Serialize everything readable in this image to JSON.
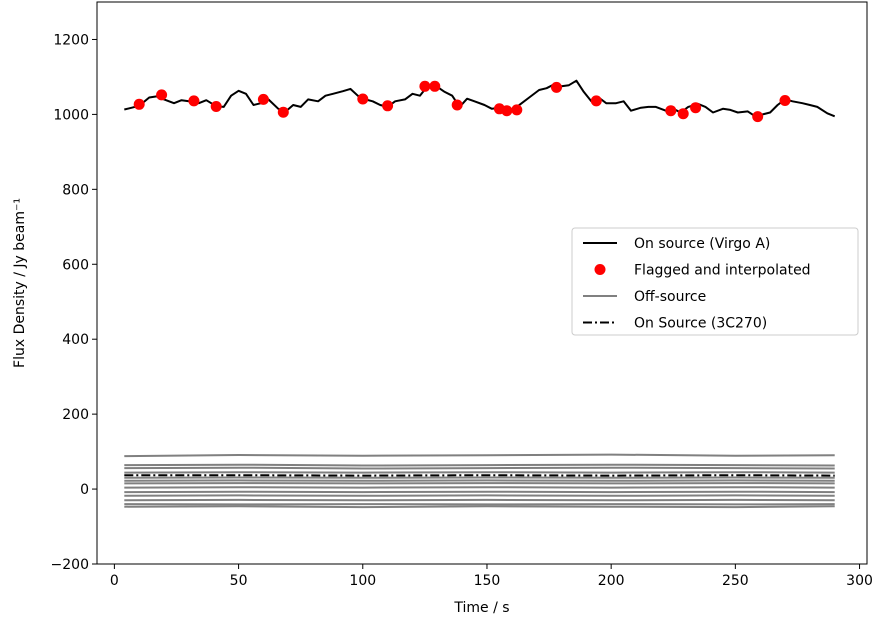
{
  "chart_data": {
    "type": "line",
    "xlabel": "Time / s",
    "ylabel": "Flux Density / Jy beam⁻¹",
    "xlim": [
      -7,
      303
    ],
    "ylim": [
      -200,
      1300
    ],
    "xticks": [
      0,
      50,
      100,
      150,
      200,
      250,
      300
    ],
    "yticks": [
      -200,
      0,
      200,
      400,
      600,
      800,
      1000,
      1200
    ],
    "xtick_labels": [
      "0",
      "50",
      "100",
      "150",
      "200",
      "250",
      "300"
    ],
    "ytick_labels": [
      "−200",
      "0",
      "200",
      "400",
      "600",
      "800",
      "1000",
      "1200"
    ],
    "grid": false,
    "legend_position": "center-right",
    "legend": [
      {
        "label": "On source (Virgo A)",
        "style": "solid",
        "color": "#000000"
      },
      {
        "label": "Flagged and interpolated",
        "style": "marker",
        "color": "#ff0000"
      },
      {
        "label": "Off-source",
        "style": "solid",
        "color": "#808080"
      },
      {
        "label": "On Source (3C270)",
        "style": "dashdot",
        "color": "#000000"
      }
    ],
    "series": [
      {
        "name": "On source (Virgo A)",
        "style": "solid",
        "color": "#000000",
        "x": [
          4,
          7,
          10,
          14,
          17,
          20,
          24,
          27,
          30,
          34,
          37,
          41,
          44,
          47,
          50,
          53,
          56,
          59,
          62,
          66,
          69,
          72,
          75,
          78,
          82,
          85,
          88,
          92,
          95,
          98,
          101,
          104,
          107,
          110,
          113,
          117,
          120,
          123,
          126,
          129,
          133,
          136,
          139,
          142,
          145,
          149,
          152,
          155,
          158,
          161,
          164,
          167,
          171,
          174,
          177,
          180,
          183,
          186,
          189,
          192,
          195,
          198,
          202,
          205,
          208,
          212,
          215,
          218,
          222,
          225,
          228,
          231,
          235,
          238,
          241,
          245,
          248,
          251,
          255,
          258,
          261,
          264,
          267,
          270,
          273,
          277,
          280,
          283,
          287,
          290
        ],
        "y": [
          1013,
          1018,
          1023,
          1045,
          1048,
          1040,
          1030,
          1038,
          1035,
          1030,
          1038,
          1022,
          1020,
          1050,
          1063,
          1055,
          1025,
          1030,
          1040,
          1015,
          1008,
          1025,
          1020,
          1040,
          1035,
          1050,
          1055,
          1062,
          1068,
          1050,
          1040,
          1035,
          1025,
          1020,
          1035,
          1040,
          1055,
          1050,
          1075,
          1078,
          1060,
          1050,
          1020,
          1042,
          1035,
          1025,
          1015,
          1018,
          1012,
          1015,
          1030,
          1045,
          1065,
          1070,
          1080,
          1075,
          1078,
          1090,
          1060,
          1035,
          1045,
          1030,
          1030,
          1035,
          1010,
          1018,
          1020,
          1020,
          1010,
          1015,
          1005,
          1020,
          1028,
          1020,
          1005,
          1015,
          1012,
          1005,
          1008,
          995,
          1000,
          1005,
          1025,
          1040,
          1035,
          1030,
          1025,
          1020,
          1003,
          995
        ]
      },
      {
        "name": "Flagged and interpolated",
        "style": "marker",
        "color": "#ff0000",
        "x": [
          10,
          19,
          32,
          41,
          60,
          68,
          100,
          110,
          125,
          129,
          138,
          155,
          158,
          162,
          178,
          194,
          224,
          229,
          234,
          259,
          270
        ],
        "y": [
          1027,
          1052,
          1036,
          1021,
          1040,
          1006,
          1041,
          1023,
          1075,
          1075,
          1025,
          1015,
          1010,
          1012,
          1072,
          1036,
          1010,
          1002,
          1018,
          994,
          1037
        ]
      },
      {
        "name": "Off-source",
        "style": "solid",
        "color": "#808080",
        "x": [
          4,
          50,
          100,
          150,
          200,
          250,
          290
        ],
        "y": [
          88,
          91,
          89,
          90,
          92,
          89,
          90
        ]
      },
      {
        "name": "Off-source",
        "style": "solid",
        "color": "#808080",
        "x": [
          4,
          50,
          100,
          150,
          200,
          250,
          290
        ],
        "y": [
          64,
          65,
          63,
          64,
          65,
          64,
          63
        ]
      },
      {
        "name": "Off-source",
        "style": "solid",
        "color": "#808080",
        "x": [
          4,
          50,
          100,
          150,
          200,
          250,
          290
        ],
        "y": [
          56,
          57,
          55,
          56,
          57,
          56,
          55
        ]
      },
      {
        "name": "Off-source",
        "style": "solid",
        "color": "#808080",
        "x": [
          4,
          50,
          100,
          150,
          200,
          250,
          290
        ],
        "y": [
          44,
          45,
          44,
          45,
          44,
          45,
          44
        ]
      },
      {
        "name": "Off-source",
        "style": "solid",
        "color": "#808080",
        "x": [
          4,
          50,
          100,
          150,
          200,
          250,
          290
        ],
        "y": [
          30,
          31,
          30,
          31,
          30,
          31,
          30
        ]
      },
      {
        "name": "Off-source",
        "style": "solid",
        "color": "#808080",
        "x": [
          4,
          50,
          100,
          150,
          200,
          250,
          290
        ],
        "y": [
          22,
          23,
          22,
          23,
          22,
          23,
          22
        ]
      },
      {
        "name": "Off-source",
        "style": "solid",
        "color": "#808080",
        "x": [
          4,
          50,
          100,
          150,
          200,
          250,
          290
        ],
        "y": [
          15,
          16,
          15,
          16,
          15,
          16,
          15
        ]
      },
      {
        "name": "Off-source",
        "style": "solid",
        "color": "#808080",
        "x": [
          4,
          50,
          100,
          150,
          200,
          250,
          290
        ],
        "y": [
          4,
          5,
          4,
          5,
          4,
          5,
          4
        ]
      },
      {
        "name": "Off-source",
        "style": "solid",
        "color": "#808080",
        "x": [
          4,
          50,
          100,
          150,
          200,
          250,
          290
        ],
        "y": [
          -8,
          -7,
          -8,
          -7,
          -8,
          -7,
          -8
        ]
      },
      {
        "name": "Off-source",
        "style": "solid",
        "color": "#808080",
        "x": [
          4,
          50,
          100,
          150,
          200,
          250,
          290
        ],
        "y": [
          -18,
          -17,
          -18,
          -17,
          -18,
          -17,
          -18
        ]
      },
      {
        "name": "Off-source",
        "style": "solid",
        "color": "#808080",
        "x": [
          4,
          50,
          100,
          150,
          200,
          250,
          290
        ],
        "y": [
          -30,
          -29,
          -30,
          -29,
          -30,
          -29,
          -30
        ]
      },
      {
        "name": "Off-source",
        "style": "solid",
        "color": "#808080",
        "x": [
          4,
          50,
          100,
          150,
          200,
          250,
          290
        ],
        "y": [
          -40,
          -41,
          -40,
          -41,
          -40,
          -41,
          -40
        ]
      },
      {
        "name": "Off-source",
        "style": "solid",
        "color": "#808080",
        "x": [
          4,
          50,
          100,
          150,
          200,
          250,
          290
        ],
        "y": [
          -47,
          -46,
          -48,
          -46,
          -47,
          -48,
          -46
        ]
      },
      {
        "name": "On Source (3C270)",
        "style": "dashdot",
        "color": "#000000",
        "x": [
          4,
          50,
          100,
          150,
          200,
          250,
          290
        ],
        "y": [
          37,
          37,
          36,
          37,
          36,
          37,
          36
        ]
      }
    ]
  }
}
